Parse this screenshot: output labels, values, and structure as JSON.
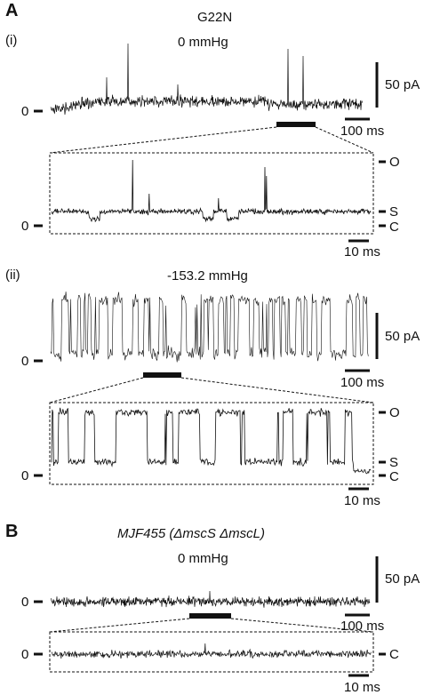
{
  "panel_a": {
    "label": "A",
    "construct": "G22N",
    "i": {
      "label": "(i)",
      "pressure": "0 mmHg",
      "scale_current": "50 pA",
      "scale_time": "100 ms",
      "zoom_scale_time": "10 ms",
      "zero_label": "0",
      "zoom_zero_label": "0",
      "levels": {
        "open": "O",
        "sub": "S",
        "closed": "C"
      }
    },
    "ii": {
      "label": "(ii)",
      "pressure": "-153.2 mmHg",
      "scale_current": "50 pA",
      "scale_time": "100 ms",
      "zoom_scale_time": "10 ms",
      "zero_label": "0",
      "zoom_zero_label": "0",
      "levels": {
        "open": "O",
        "sub": "S",
        "closed": "C"
      }
    }
  },
  "panel_b": {
    "label": "B",
    "strain": "MJF455 (ΔmscS ΔmscL)",
    "pressure": "0 mmHg",
    "scale_current": "50 pA",
    "scale_time": "100 ms",
    "zoom_scale_time": "10 ms",
    "zero_label": "0",
    "zoom_zero_label": "0",
    "levels": {
      "closed": "C"
    }
  },
  "colors": {
    "trace": "#111111",
    "background": "#ffffff"
  }
}
